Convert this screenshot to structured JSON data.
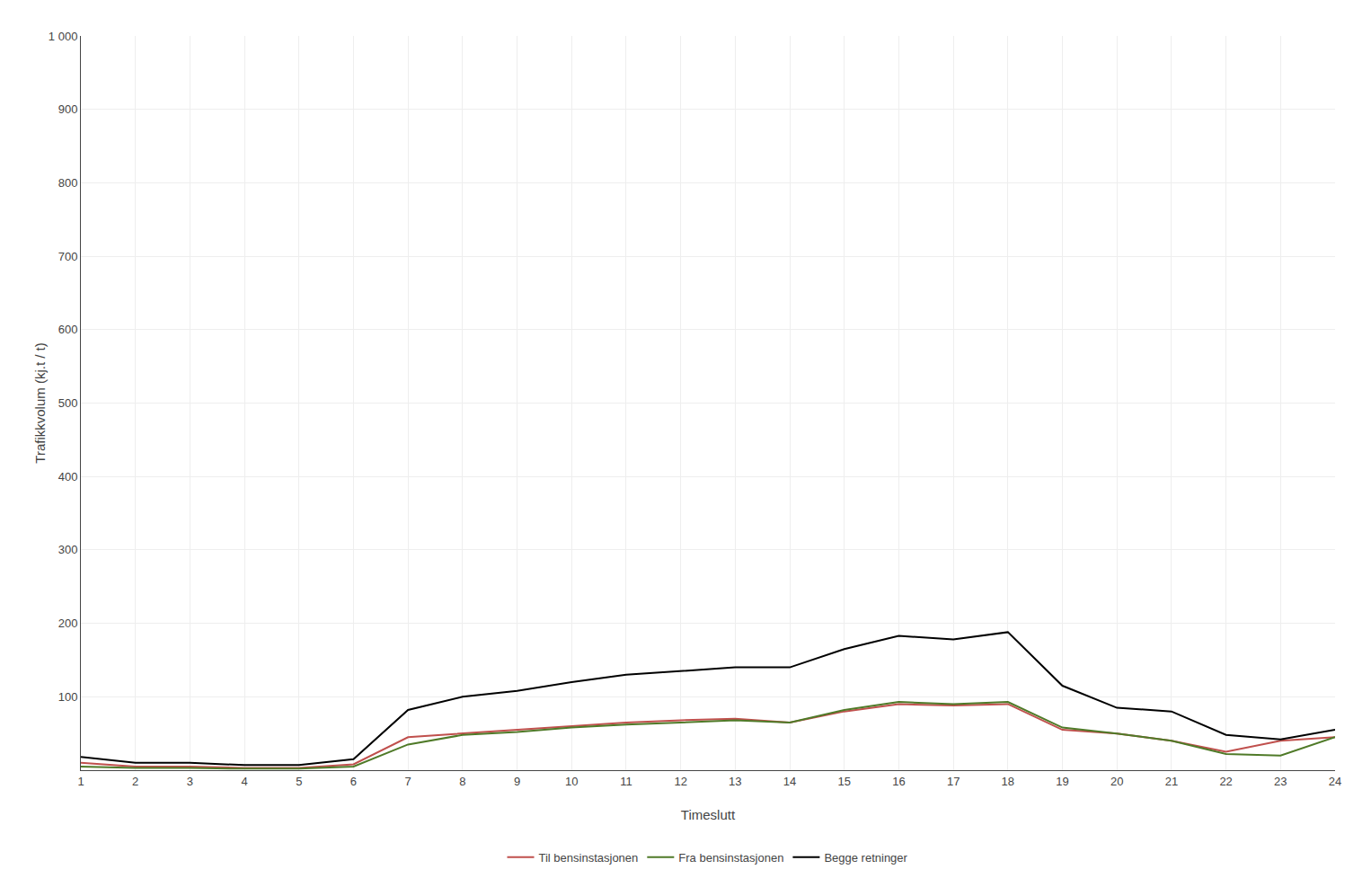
{
  "chart_data": {
    "type": "line",
    "xlabel": "Timeslutt",
    "ylabel": "Trafikkvolum (kj.t / t)",
    "x": [
      1,
      2,
      3,
      4,
      5,
      6,
      7,
      8,
      9,
      10,
      11,
      12,
      13,
      14,
      15,
      16,
      17,
      18,
      19,
      20,
      21,
      22,
      23,
      24
    ],
    "series": [
      {
        "name": "Til bensinstasjonen",
        "color": "#c0504d",
        "values": [
          10,
          5,
          5,
          3,
          3,
          8,
          45,
          50,
          55,
          60,
          65,
          68,
          70,
          65,
          80,
          90,
          88,
          90,
          55,
          50,
          40,
          25,
          40,
          45
        ]
      },
      {
        "name": "Fra bensinstasjonen",
        "color": "#4f7a28",
        "values": [
          5,
          3,
          3,
          2,
          2,
          5,
          35,
          48,
          52,
          58,
          62,
          65,
          68,
          65,
          82,
          93,
          90,
          93,
          58,
          50,
          40,
          22,
          20,
          45
        ]
      },
      {
        "name": "Begge retninger",
        "color": "#000000",
        "values": [
          18,
          10,
          10,
          7,
          7,
          15,
          82,
          100,
          108,
          120,
          130,
          135,
          140,
          140,
          165,
          183,
          178,
          188,
          115,
          85,
          80,
          48,
          42,
          55
        ]
      }
    ],
    "xlim": [
      1,
      24
    ],
    "xticks": [
      1,
      2,
      3,
      4,
      5,
      6,
      7,
      8,
      9,
      10,
      11,
      12,
      13,
      14,
      15,
      16,
      17,
      18,
      19,
      20,
      21,
      22,
      23,
      24
    ],
    "ylim": [
      0,
      1000
    ],
    "yticks": [
      100,
      200,
      300,
      400,
      500,
      600,
      700,
      800,
      900,
      {
        "value": 1000,
        "label": "1 000"
      }
    ],
    "grid": true,
    "legend": "bottom"
  }
}
